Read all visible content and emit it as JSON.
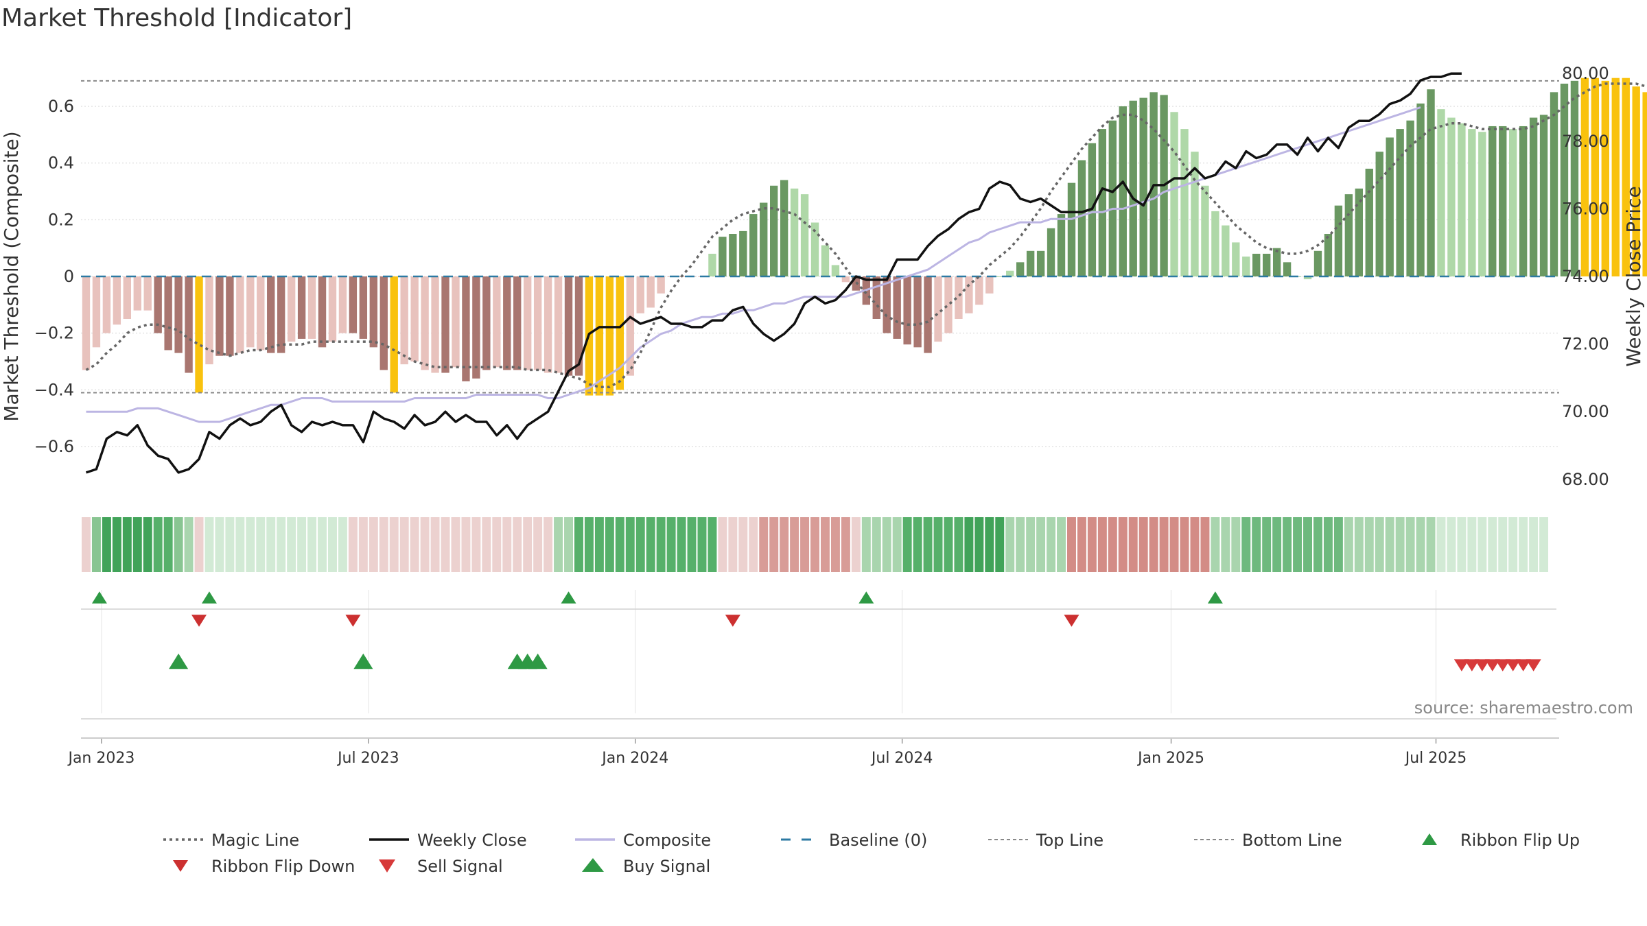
{
  "title": "Market Threshold [Indicator]",
  "source": "source: sharemaestro.com",
  "colors": {
    "bar_neg_light": "#e8c2bd",
    "bar_neg_dark": "#a97670",
    "bar_pos_light": "#afd8a8",
    "bar_pos_dark": "#6a9862",
    "bar_extreme": "#f9c20e",
    "weekly_close": "#111111",
    "composite": "#bcb5e3",
    "magic_line": "#666666",
    "baseline": "#2c7aa3",
    "threshold_line": "#888888",
    "buy": "#2e9944",
    "sell": "#d73a3a",
    "ribbon_up": "#2e9944",
    "ribbon_down": "#cc3030"
  },
  "chart_data": {
    "type": "bar+line",
    "title": "Market Threshold [Indicator]",
    "ylabel_left": "Market Threshold (Composite)",
    "ylabel_right": "Weekly Close Price",
    "ylim_left": [
      -0.78,
      0.78
    ],
    "ylim_right": [
      67.0,
      81.0
    ],
    "yticks_left": [
      "0.6",
      "0.4",
      "0.2",
      "0",
      "−0.2",
      "−0.4",
      "−0.6"
    ],
    "yticks_left_values": [
      0.6,
      0.4,
      0.2,
      0,
      -0.2,
      -0.4,
      -0.6
    ],
    "yticks_right": [
      "80.00",
      "78.00",
      "76.00",
      "74.00",
      "72.00",
      "70.00",
      "68.00"
    ],
    "yticks_right_values": [
      80,
      78,
      76,
      74,
      72,
      70,
      68
    ],
    "xticks": [
      "Jan 2023",
      "Jul 2023",
      "Jan 2024",
      "Jul 2024",
      "Jan 2025",
      "Jul 2025"
    ],
    "xticks_weeks": [
      1.5,
      27.5,
      53.5,
      79.5,
      105.7,
      131.5
    ],
    "n_weeks": 144,
    "top_line": 0.69,
    "bottom_line": -0.41,
    "composite_bars": [
      -0.33,
      -0.25,
      -0.2,
      -0.17,
      -0.15,
      -0.12,
      -0.12,
      -0.2,
      -0.26,
      -0.27,
      -0.34,
      -0.41,
      -0.31,
      -0.28,
      -0.28,
      -0.27,
      -0.25,
      -0.26,
      -0.27,
      -0.27,
      -0.23,
      -0.22,
      -0.22,
      -0.25,
      -0.23,
      -0.2,
      -0.2,
      -0.22,
      -0.25,
      -0.33,
      -0.41,
      -0.31,
      -0.3,
      -0.33,
      -0.34,
      -0.34,
      -0.32,
      -0.37,
      -0.36,
      -0.33,
      -0.32,
      -0.33,
      -0.33,
      -0.33,
      -0.33,
      -0.34,
      -0.34,
      -0.35,
      -0.35,
      -0.42,
      -0.42,
      -0.42,
      -0.4,
      -0.35,
      -0.13,
      -0.11,
      -0.06,
      0.0,
      0.0,
      0.0,
      0.0,
      0.08,
      0.14,
      0.15,
      0.16,
      0.22,
      0.26,
      0.32,
      0.34,
      0.31,
      0.29,
      0.19,
      0.11,
      0.04,
      -0.02,
      -0.05,
      -0.1,
      -0.15,
      -0.2,
      -0.22,
      -0.24,
      -0.25,
      -0.27,
      -0.23,
      -0.2,
      -0.15,
      -0.13,
      -0.1,
      -0.06,
      0.0,
      0.02,
      0.05,
      0.09,
      0.09,
      0.17,
      0.22,
      0.33,
      0.41,
      0.47,
      0.52,
      0.55,
      0.6,
      0.62,
      0.63,
      0.65,
      0.64,
      0.58,
      0.52,
      0.44,
      0.32,
      0.23,
      0.18,
      0.12,
      0.07,
      0.08,
      0.08,
      0.1,
      0.05,
      0.0,
      -0.01,
      0.09,
      0.15,
      0.25,
      0.29,
      0.31,
      0.38,
      0.44,
      0.49,
      0.52,
      0.55,
      0.61,
      0.66,
      0.59,
      0.56,
      0.54,
      0.52,
      0.51,
      0.53,
      0.53,
      0.52,
      0.53,
      0.56,
      0.57,
      0.65,
      0.68,
      0.69,
      0.7,
      0.7,
      0.69,
      0.7,
      0.7,
      0.67,
      0.65,
      0.61,
      0.59
    ],
    "bar_category": [
      "nl",
      "nl",
      "nl",
      "nl",
      "nl",
      "nl",
      "nl",
      "nd",
      "nd",
      "nd",
      "nd",
      "ex",
      "nl",
      "nd",
      "nd",
      "nl",
      "nl",
      "nl",
      "nd",
      "nd",
      "nl",
      "nd",
      "nl",
      "nd",
      "nl",
      "nl",
      "nd",
      "nd",
      "nd",
      "nd",
      "ex",
      "nl",
      "nl",
      "nl",
      "nl",
      "nd",
      "nl",
      "nd",
      "nd",
      "nd",
      "nl",
      "nd",
      "nd",
      "nl",
      "nl",
      "nl",
      "nl",
      "nd",
      "nd",
      "ex",
      "ex",
      "ex",
      "ex",
      "nl",
      "nl",
      "nl",
      "nl",
      "nl",
      "nl",
      "nl",
      "nl",
      "pl",
      "pd",
      "pd",
      "pd",
      "pd",
      "pd",
      "pd",
      "pd",
      "pl",
      "pl",
      "pl",
      "pl",
      "pl",
      "nl",
      "nd",
      "nd",
      "nd",
      "nd",
      "nd",
      "nd",
      "nd",
      "nd",
      "nl",
      "nl",
      "nl",
      "nl",
      "nl",
      "nl",
      "pl",
      "pl",
      "pd",
      "pd",
      "pd",
      "pd",
      "pd",
      "pd",
      "pd",
      "pd",
      "pd",
      "pd",
      "pd",
      "pd",
      "pd",
      "pd",
      "pd",
      "pl",
      "pl",
      "pl",
      "pl",
      "pl",
      "pl",
      "pl",
      "pl",
      "pd",
      "pd",
      "pd",
      "pd",
      "pl",
      "pl",
      "pd",
      "pd",
      "pd",
      "pd",
      "pd",
      "pd",
      "pd",
      "pd",
      "pd",
      "pd",
      "pd",
      "pd",
      "pl",
      "pl",
      "pl",
      "pl",
      "pl",
      "pd",
      "pd",
      "pl",
      "pd",
      "pd",
      "pd",
      "pd",
      "pd",
      "pd",
      "ex",
      "ex",
      "ex",
      "ex",
      "ex",
      "ex",
      "ex",
      "pl",
      "pl",
      "pl"
    ],
    "magic_line": [
      -0.33,
      -0.31,
      -0.27,
      -0.24,
      -0.2,
      -0.18,
      -0.17,
      -0.17,
      -0.18,
      -0.19,
      -0.22,
      -0.24,
      -0.26,
      -0.27,
      -0.28,
      -0.27,
      -0.26,
      -0.26,
      -0.25,
      -0.24,
      -0.24,
      -0.24,
      -0.23,
      -0.23,
      -0.23,
      -0.23,
      -0.23,
      -0.23,
      -0.23,
      -0.24,
      -0.26,
      -0.28,
      -0.3,
      -0.31,
      -0.32,
      -0.32,
      -0.32,
      -0.32,
      -0.32,
      -0.32,
      -0.32,
      -0.32,
      -0.32,
      -0.33,
      -0.33,
      -0.33,
      -0.34,
      -0.35,
      -0.36,
      -0.38,
      -0.39,
      -0.39,
      -0.37,
      -0.33,
      -0.27,
      -0.19,
      -0.11,
      -0.05,
      0.0,
      0.04,
      0.09,
      0.14,
      0.17,
      0.2,
      0.22,
      0.23,
      0.24,
      0.24,
      0.23,
      0.22,
      0.19,
      0.16,
      0.12,
      0.08,
      0.03,
      -0.02,
      -0.06,
      -0.1,
      -0.14,
      -0.16,
      -0.17,
      -0.17,
      -0.16,
      -0.13,
      -0.1,
      -0.07,
      -0.03,
      0.0,
      0.04,
      0.07,
      0.1,
      0.14,
      0.19,
      0.24,
      0.3,
      0.35,
      0.4,
      0.45,
      0.49,
      0.53,
      0.56,
      0.57,
      0.57,
      0.55,
      0.52,
      0.48,
      0.44,
      0.39,
      0.34,
      0.3,
      0.26,
      0.22,
      0.18,
      0.15,
      0.12,
      0.1,
      0.09,
      0.08,
      0.08,
      0.09,
      0.11,
      0.14,
      0.18,
      0.22,
      0.26,
      0.3,
      0.34,
      0.38,
      0.42,
      0.46,
      0.49,
      0.52,
      0.53,
      0.54,
      0.54,
      0.53,
      0.52,
      0.52,
      0.52,
      0.52,
      0.52,
      0.53,
      0.55,
      0.57,
      0.6,
      0.63,
      0.65,
      0.67,
      0.68,
      0.68,
      0.68,
      0.68,
      0.67,
      0.66,
      0.65,
      0.64
    ],
    "weekly_close": [
      68.2,
      68.3,
      69.2,
      69.4,
      69.3,
      69.6,
      69.0,
      68.7,
      68.6,
      68.2,
      68.3,
      68.6,
      69.4,
      69.2,
      69.6,
      69.8,
      69.6,
      69.7,
      70.0,
      70.2,
      69.6,
      69.4,
      69.7,
      69.6,
      69.7,
      69.6,
      69.6,
      69.1,
      70.0,
      69.8,
      69.7,
      69.5,
      69.9,
      69.6,
      69.7,
      70.0,
      69.7,
      69.9,
      69.7,
      69.7,
      69.3,
      69.6,
      69.2,
      69.6,
      69.8,
      70.0,
      70.6,
      71.2,
      71.4,
      72.3,
      72.5,
      72.5,
      72.5,
      72.8,
      72.6,
      72.7,
      72.8,
      72.6,
      72.6,
      72.5,
      72.5,
      72.7,
      72.7,
      73.0,
      73.1,
      72.6,
      72.3,
      72.1,
      72.3,
      72.6,
      73.2,
      73.4,
      73.2,
      73.3,
      73.6,
      74.0,
      73.9,
      73.9,
      73.9,
      74.5,
      74.5,
      74.5,
      74.9,
      75.2,
      75.4,
      75.7,
      75.9,
      76.0,
      76.6,
      76.8,
      76.7,
      76.3,
      76.2,
      76.3,
      76.1,
      75.9,
      75.9,
      75.9,
      76.0,
      76.6,
      76.5,
      76.8,
      76.3,
      76.1,
      76.7,
      76.7,
      76.9,
      76.9,
      77.2,
      76.9,
      77.0,
      77.4,
      77.2,
      77.7,
      77.5,
      77.6,
      77.9,
      77.9,
      77.6,
      78.1,
      77.7,
      78.1,
      77.8,
      78.4,
      78.6,
      78.6,
      78.8,
      79.1,
      79.2,
      79.4,
      79.8,
      79.9,
      79.9,
      80.0,
      80.0
    ],
    "composite_line": [
      70.0,
      70.0,
      70.0,
      70.0,
      70.0,
      70.1,
      70.1,
      70.1,
      70.0,
      69.9,
      69.8,
      69.7,
      69.7,
      69.7,
      69.8,
      69.9,
      70.0,
      70.1,
      70.2,
      70.2,
      70.3,
      70.4,
      70.4,
      70.4,
      70.3,
      70.3,
      70.3,
      70.3,
      70.3,
      70.3,
      70.3,
      70.3,
      70.4,
      70.4,
      70.4,
      70.4,
      70.4,
      70.4,
      70.5,
      70.5,
      70.5,
      70.5,
      70.5,
      70.5,
      70.5,
      70.4,
      70.4,
      70.5,
      70.6,
      70.7,
      70.9,
      71.1,
      71.3,
      71.6,
      71.9,
      72.1,
      72.3,
      72.4,
      72.6,
      72.7,
      72.8,
      72.8,
      72.9,
      72.9,
      73.0,
      73.0,
      73.1,
      73.2,
      73.2,
      73.3,
      73.4,
      73.4,
      73.4,
      73.4,
      73.4,
      73.5,
      73.6,
      73.7,
      73.8,
      73.9,
      74.0,
      74.1,
      74.2,
      74.4,
      74.6,
      74.8,
      75.0,
      75.1,
      75.3,
      75.4,
      75.5,
      75.6,
      75.6,
      75.6,
      75.7,
      75.7,
      75.7,
      75.8,
      75.9,
      75.9,
      76.0,
      76.0,
      76.1,
      76.2,
      76.3,
      76.5,
      76.6,
      76.7,
      76.8,
      76.9,
      77.0,
      77.1,
      77.2,
      77.3,
      77.4,
      77.5,
      77.6,
      77.7,
      77.8,
      77.9,
      78.0,
      78.1,
      78.2,
      78.3,
      78.4,
      78.5,
      78.6,
      78.7,
      78.8,
      78.9,
      79.0
    ],
    "ribbon": [
      {
        "c": "#ecd1cf",
        "n": 1
      },
      {
        "c": "#89c592",
        "n": 1
      },
      {
        "c": "#41a359",
        "n": 5
      },
      {
        "c": "#56b06a",
        "n": 2
      },
      {
        "c": "#89c592",
        "n": 1
      },
      {
        "c": "#a9d5ae",
        "n": 1
      },
      {
        "c": "#ecd1cf",
        "n": 1
      },
      {
        "c": "#d2eaD5",
        "n": 14
      },
      {
        "c": "#ecd1cf",
        "n": 20
      },
      {
        "c": "#a9d5ae",
        "n": 2
      },
      {
        "c": "#56b06a",
        "n": 14
      },
      {
        "c": "#ecd1cf",
        "n": 4
      },
      {
        "c": "#d89c97",
        "n": 9
      },
      {
        "c": "#ecd1cf",
        "n": 1
      },
      {
        "c": "#a9d5ae",
        "n": 4
      },
      {
        "c": "#56b06a",
        "n": 6
      },
      {
        "c": "#41a359",
        "n": 4
      },
      {
        "c": "#a9d5ae",
        "n": 6
      },
      {
        "c": "#d38c86",
        "n": 14
      },
      {
        "c": "#a9d5ae",
        "n": 3
      },
      {
        "c": "#6eb97e",
        "n": 10
      },
      {
        "c": "#a9d5ae",
        "n": 9
      },
      {
        "c": "#d2eaD5",
        "n": 11
      }
    ],
    "ribbon_flip_up_weeks": [
      1.3,
      12,
      47,
      76,
      110
    ],
    "ribbon_flip_down_weeks": [
      11,
      26,
      63,
      96
    ],
    "buy_signal_weeks": [
      9,
      27,
      42,
      43,
      44
    ],
    "sell_signal_weeks": [
      134.5,
      135.5,
      136.5,
      137.5,
      138.5,
      139.5,
      140.5,
      141.5
    ],
    "legend": [
      {
        "label": "Magic Line",
        "kind": "dotted"
      },
      {
        "label": "Weekly Close",
        "kind": "solid"
      },
      {
        "label": "Composite",
        "kind": "solid-light"
      },
      {
        "label": "Baseline (0)",
        "kind": "dashed"
      },
      {
        "label": "Top Line",
        "kind": "dashed-thin"
      },
      {
        "label": "Bottom Line",
        "kind": "dashed-thin"
      },
      {
        "label": "Ribbon Flip Up",
        "kind": "tri-up-small"
      },
      {
        "label": "Ribbon Flip Down",
        "kind": "tri-down-small"
      },
      {
        "label": "Sell Signal",
        "kind": "tri-down-large"
      },
      {
        "label": "Buy Signal",
        "kind": "tri-up-large"
      }
    ]
  }
}
